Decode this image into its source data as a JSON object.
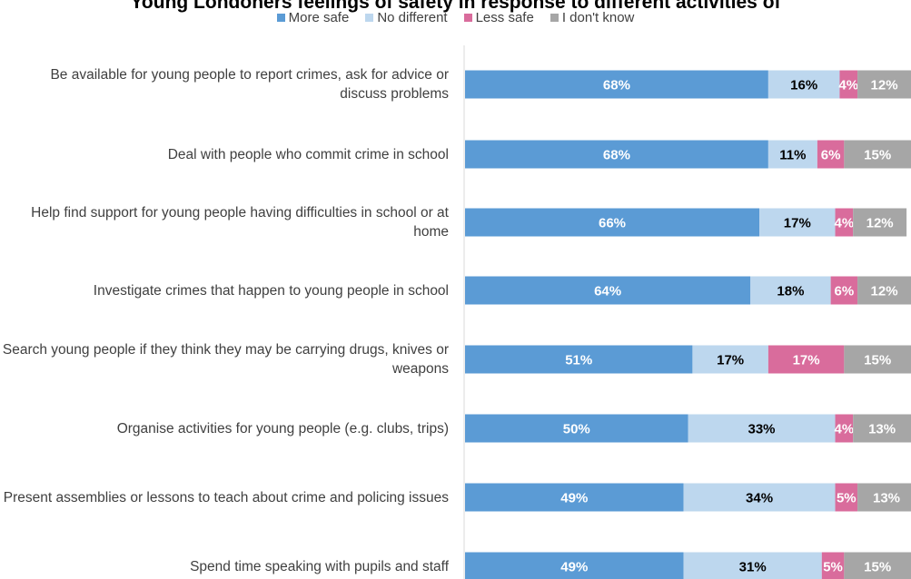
{
  "chart_data": {
    "type": "bar",
    "orientation": "horizontal",
    "stacked": "percent",
    "title": "Young Londoners feelings of safety in response to different activities of",
    "categories": [
      "Be available for young people to report crimes, ask for advice or discuss problems",
      "Deal with people who commit crime in school",
      "Help find support for young people having difficulties in school or at home",
      "Investigate crimes that happen to young people in school",
      "Search young people if they think they may be carrying drugs, knives or weapons",
      "Organise activities for young people (e.g. clubs, trips)",
      "Present assemblies or lessons to teach about crime and policing issues",
      "Spend time speaking with pupils and staff"
    ],
    "series": [
      {
        "name": "More safe",
        "color": "#5b9bd5",
        "label_color": "#ffffff",
        "values": [
          68,
          68,
          66,
          64,
          51,
          50,
          49,
          49
        ]
      },
      {
        "name": "No different",
        "color": "#bdd7ee",
        "label_color": "#000000",
        "values": [
          16,
          11,
          17,
          18,
          17,
          33,
          34,
          31
        ]
      },
      {
        "name": "Less safe",
        "color": "#d96c9c",
        "label_color": "#ffffff",
        "values": [
          4,
          6,
          4,
          6,
          17,
          4,
          5,
          5
        ]
      },
      {
        "name": "I don't know",
        "color": "#a6a6a6",
        "label_color": "#ffffff",
        "values": [
          12,
          15,
          12,
          12,
          15,
          13,
          13,
          15
        ]
      }
    ],
    "value_suffix": "%",
    "xlim": [
      0,
      100
    ],
    "legend_position": "top"
  }
}
